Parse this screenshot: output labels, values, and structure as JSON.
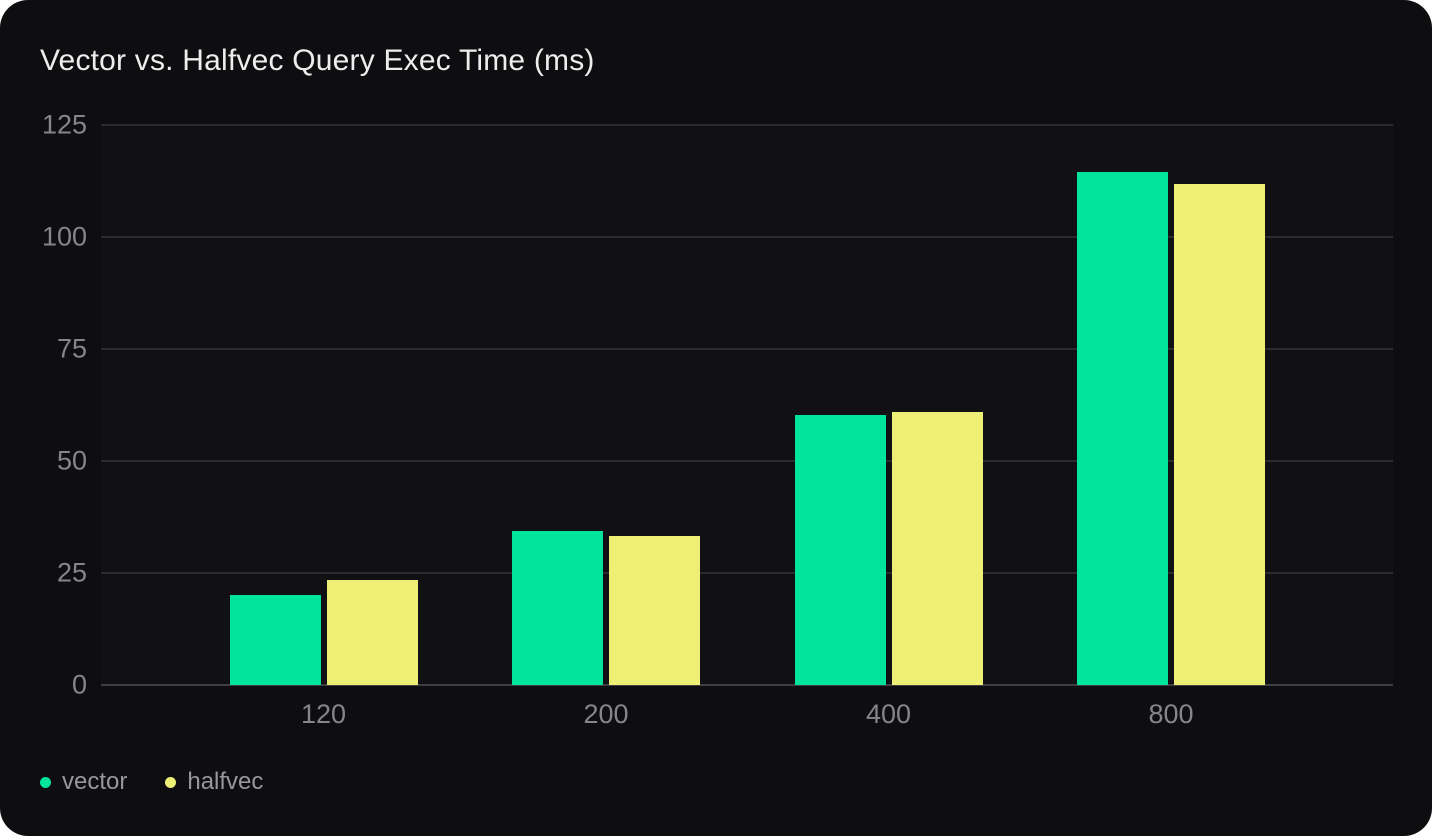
{
  "page": {
    "background": "#ffffff",
    "card_background": "#0e0e10"
  },
  "chart_data": {
    "type": "bar",
    "title": "Vector vs. Halfvec Query Exec Time (ms)",
    "categories": [
      "120",
      "200",
      "400",
      "800"
    ],
    "series": [
      {
        "name": "vector",
        "color": "#00e599",
        "values": [
          20.0,
          34.4,
          60.2,
          114.5
        ]
      },
      {
        "name": "halfvec",
        "color": "#edf075",
        "values": [
          23.5,
          33.3,
          61.0,
          111.8
        ]
      }
    ],
    "xlabel": "",
    "ylabel": "",
    "ylim": [
      0,
      125
    ],
    "yticks": [
      0,
      25,
      50,
      75,
      100,
      125
    ],
    "grid": true,
    "legend_position": "bottom-left"
  },
  "colors": {
    "gridline": "#2b2b2e",
    "baseline": "#3f3f42",
    "tick_label": "#85858a",
    "legend_label": "#97979c",
    "title": "#ededee"
  }
}
